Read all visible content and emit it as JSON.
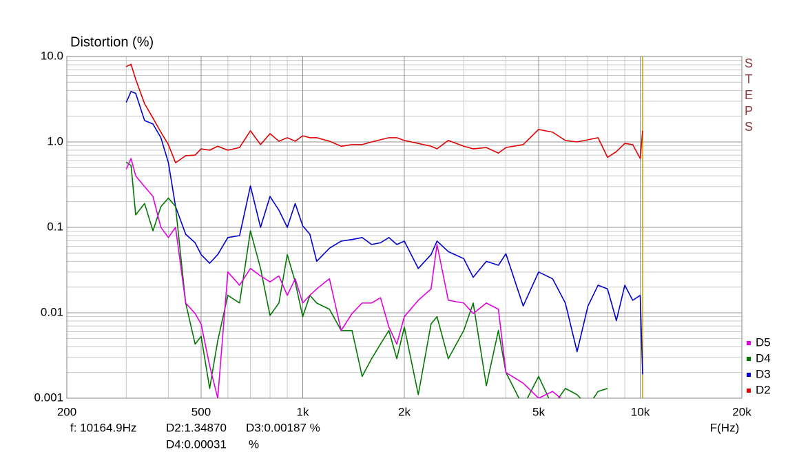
{
  "chart_data": {
    "type": "line",
    "title": "Distortion (%)",
    "x_label": "F(Hz)",
    "side_label": "STEPS",
    "log_x": true,
    "log_y": true,
    "grid": true,
    "legend_position": "lower right",
    "xlim": [
      200,
      20000
    ],
    "xticks": [
      200,
      500,
      {
        "value": 1000,
        "label": "1k"
      },
      {
        "value": 2000,
        "label": "2k"
      },
      {
        "value": 5000,
        "label": "5k"
      },
      {
        "value": 10000,
        "label": "10k"
      },
      {
        "value": 20000,
        "label": "20k"
      }
    ],
    "ylim": [
      0.001,
      10
    ],
    "yticks": [
      {
        "value": 10,
        "label": "10.0"
      },
      {
        "value": 1,
        "label": "1.0"
      },
      0.1,
      0.01,
      0.001
    ],
    "cursor": 10164.9,
    "cursor_color": "#c8a000",
    "readout": [
      "f: 10164.9Hz",
      "D2:1.34870",
      "D3:0.00187 %",
      "D4:0.00031",
      "%"
    ],
    "x": [
      300,
      310,
      320,
      340,
      360,
      380,
      400,
      420,
      450,
      480,
      500,
      530,
      560,
      600,
      650,
      700,
      750,
      800,
      850,
      900,
      950,
      1000,
      1050,
      1100,
      1200,
      1300,
      1400,
      1500,
      1600,
      1700,
      1800,
      1900,
      2000,
      2200,
      2400,
      2500,
      2700,
      3000,
      3200,
      3500,
      3800,
      4000,
      4500,
      5000,
      5500,
      6000,
      6500,
      7000,
      7500,
      8000,
      8500,
      9000,
      9500,
      10000,
      10165
    ],
    "series": [
      {
        "name": "D2",
        "color": "#e00000",
        "values": [
          7.6,
          8.1,
          5.4,
          2.8,
          1.9,
          1.3,
          0.93,
          0.57,
          0.69,
          0.7,
          0.83,
          0.8,
          0.89,
          0.8,
          0.86,
          1.35,
          0.93,
          1.25,
          1.02,
          1.12,
          1.02,
          1.18,
          1.12,
          1.12,
          1.02,
          0.89,
          0.93,
          0.93,
          1.0,
          1.06,
          1.12,
          1.12,
          1.04,
          0.96,
          0.89,
          0.83,
          1.04,
          0.89,
          0.83,
          0.86,
          0.74,
          0.86,
          0.93,
          1.4,
          1.3,
          1.04,
          1.0,
          1.06,
          1.12,
          0.66,
          0.77,
          0.96,
          0.93,
          0.64,
          1.35
        ]
      },
      {
        "name": "D3",
        "color": "#0000d0",
        "values": [
          2.9,
          3.9,
          3.7,
          1.78,
          1.62,
          1.12,
          0.57,
          0.175,
          0.083,
          0.066,
          0.048,
          0.038,
          0.048,
          0.076,
          0.08,
          0.305,
          0.1,
          0.23,
          0.159,
          0.1,
          0.19,
          0.104,
          0.083,
          0.04,
          0.057,
          0.069,
          0.072,
          0.076,
          0.063,
          0.066,
          0.076,
          0.063,
          0.069,
          0.033,
          0.048,
          0.069,
          0.052,
          0.043,
          0.026,
          0.04,
          0.036,
          0.049,
          0.012,
          0.03,
          0.025,
          0.013,
          0.0035,
          0.012,
          0.021,
          0.019,
          0.0081,
          0.021,
          0.014,
          0.016,
          0.0019
        ]
      },
      {
        "name": "D4",
        "color": "#007800",
        "values": [
          0.58,
          0.53,
          0.14,
          0.19,
          0.091,
          0.175,
          0.22,
          0.175,
          0.013,
          0.0043,
          0.0053,
          0.0013,
          0.0047,
          0.016,
          0.013,
          0.091,
          0.033,
          0.0093,
          0.013,
          0.048,
          0.023,
          0.009,
          0.016,
          0.013,
          0.011,
          0.0062,
          0.0062,
          0.0018,
          0.0029,
          0.0043,
          0.0062,
          0.0029,
          0.0068,
          0.0011,
          0.0074,
          0.009,
          0.0029,
          0.0062,
          0.013,
          0.0014,
          0.0062,
          0.002,
          0.0008,
          0.0018,
          0.0008,
          0.0013,
          0.0011,
          0.0008,
          0.0012,
          0.0013,
          null,
          null,
          null,
          null,
          null
        ]
      },
      {
        "name": "D5",
        "color": "#e000e0",
        "values": [
          0.48,
          0.64,
          0.4,
          0.3,
          0.23,
          0.1,
          0.076,
          0.1,
          0.013,
          0.0098,
          0.0074,
          0.0024,
          0.001,
          0.03,
          0.021,
          0.033,
          0.027,
          0.023,
          0.027,
          0.016,
          0.025,
          0.013,
          0.016,
          0.019,
          0.025,
          0.0062,
          0.0098,
          0.013,
          0.013,
          0.015,
          0.0068,
          0.0043,
          0.009,
          0.014,
          0.019,
          0.063,
          0.014,
          0.013,
          0.0098,
          0.013,
          0.011,
          0.002,
          0.0015,
          0.001,
          0.0012,
          0.0009,
          null,
          null,
          null,
          null,
          null,
          null,
          null,
          null,
          null
        ]
      }
    ]
  }
}
